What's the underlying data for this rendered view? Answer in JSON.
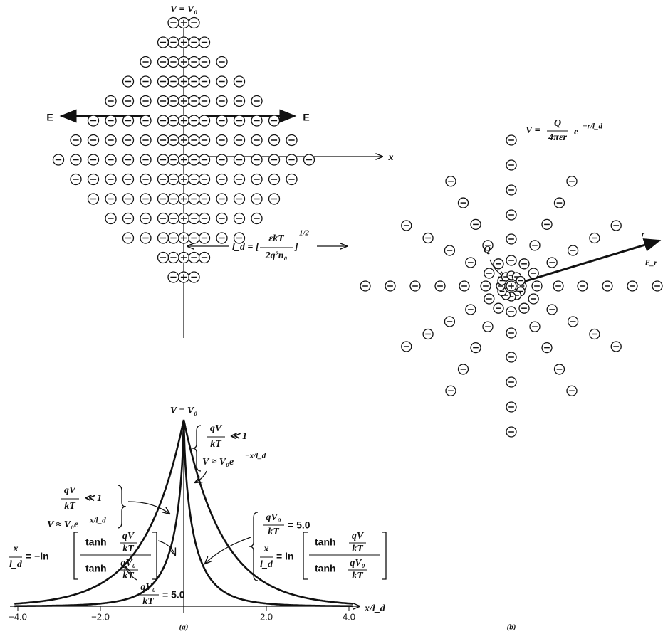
{
  "panel_a": {
    "label": "(a)",
    "top": {
      "axis_label": "V = V₀",
      "field_left": "E",
      "field_right": "E",
      "x_axis": "x",
      "debye": {
        "lhs": "l_d = [",
        "num": "εkT",
        "den": "2q²n₀",
        "rhs": "]",
        "exp": "1/2"
      }
    },
    "plot": {
      "axis_label": "V = V₀",
      "x_axis": "x/l_d",
      "xticks": [
        "−4.0",
        "−2.0",
        "2.0",
        "4.0"
      ],
      "ann_right_top": {
        "num": "qV",
        "den": "kT",
        "rel": "≪ 1",
        "eq": "V ≈ V₀e",
        "exp": "−x/l_d"
      },
      "ann_left_top": {
        "num": "qV",
        "den": "kT",
        "rel": "≪ 1",
        "eq": "V ≈ V₀e",
        "exp": "x/l_d"
      },
      "ann_left_mid": {
        "lhs_num": "x",
        "lhs_den": "l_d",
        "rel": "= −ln",
        "top": "tanh",
        "top_num": "qV",
        "top_den": "kT",
        "bot": "tanh",
        "bot_num": "qV₀",
        "bot_den": "kT"
      },
      "ann_right_mid": {
        "cond_num": "qV₀",
        "cond_den": "kT",
        "cond_rel": "= 5.0",
        "lhs_num": "x",
        "lhs_den": "l_d",
        "rel": "= ln",
        "top": "tanh",
        "top_num": "qV",
        "top_den": "kT",
        "bot": "tanh",
        "bot_num": "qV₀",
        "bot_den": "kT"
      },
      "ann_bottom": {
        "num": "qV₀",
        "den": "kT",
        "rel": "= 5.0"
      }
    }
  },
  "panel_b": {
    "label": "(b)",
    "potential": {
      "lhs": "V =",
      "num": "Q",
      "den": "4πεr",
      "base": "e",
      "exp": "−r/l_d"
    },
    "charge": "Q",
    "radius": "r",
    "field": "E_r"
  }
}
